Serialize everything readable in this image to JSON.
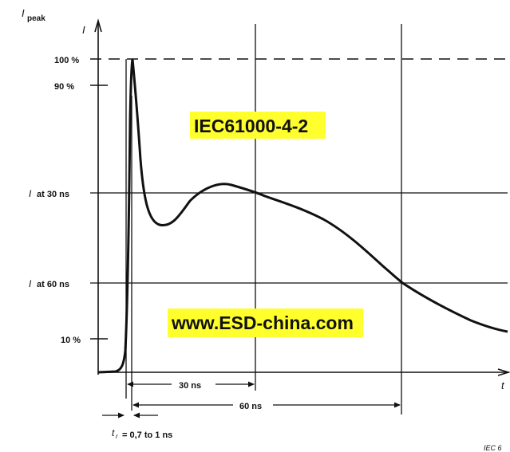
{
  "axes": {
    "y_axis_label": "I",
    "y_peak_label": "I",
    "y_peak_subscript": "peak",
    "x_axis_label": "t"
  },
  "y_levels": {
    "p100": "100 %",
    "p90": "90 %",
    "i30_prefix": "I",
    "i30_text": "at 30 ns",
    "i60_prefix": "I",
    "i60_text": "at 60 ns",
    "p10": "10 %"
  },
  "time_markers": {
    "ns30": "30 ns",
    "ns60": "60 ns"
  },
  "rise_time": {
    "symbol": "t",
    "subscript": "r",
    "text": "= 0,7 to 1 ns"
  },
  "banners": {
    "standard": "IEC61000-4-2",
    "website": "www.ESD-china.com",
    "highlight_color": "#ffff2e"
  },
  "figure_ref": "IEC 6",
  "colors": {
    "ink": "#111111",
    "banner_bg": "#ffff2e"
  }
}
